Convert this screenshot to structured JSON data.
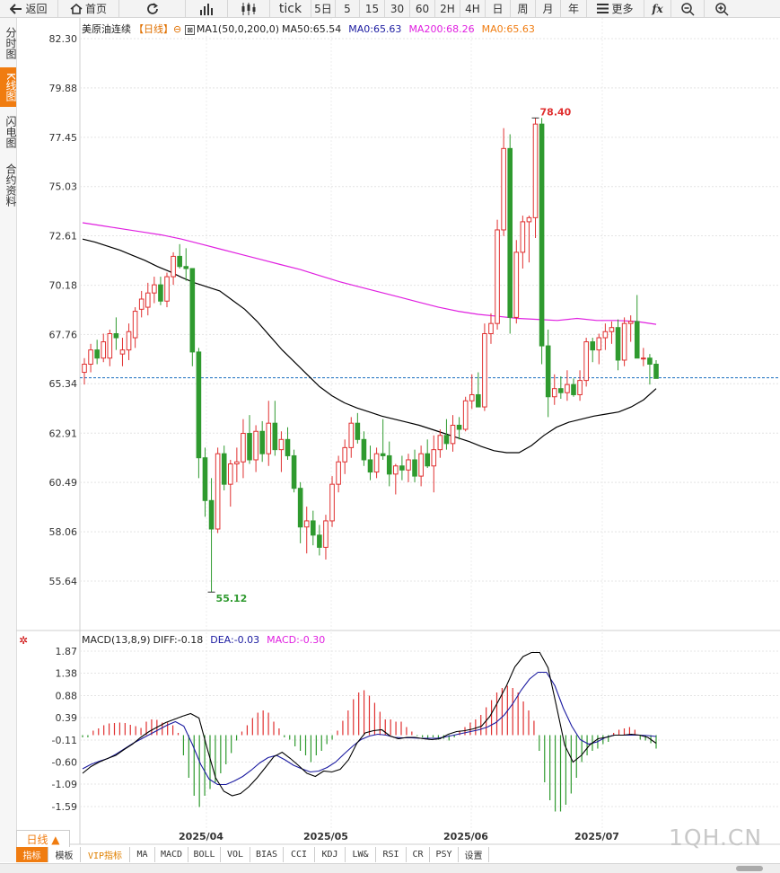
{
  "toolbar": {
    "back": "返回",
    "home": "首页",
    "tick": "tick",
    "periods": [
      "5日",
      "5",
      "15",
      "30",
      "60",
      "2H",
      "4H",
      "日",
      "周",
      "月",
      "年"
    ],
    "more": "更多",
    "fx": "fx"
  },
  "left_tabs": [
    "分时图",
    "K线图",
    "闪电图",
    "合约资料"
  ],
  "left_active": "K线图",
  "legend_main": {
    "symbol": "美原油连续",
    "period": "【日线】",
    "ma1": "MA1(50,0,200,0)",
    "ma50": "MA50:65.54",
    "ma0a": "MA0:65.63",
    "ma200": "MA200:68.26",
    "ma0b": "MA0:65.63"
  },
  "legend_macd": {
    "name": "MACD(13,8,9)",
    "diff": "DIFF:-0.18",
    "dea": "DEA:-0.03",
    "macd": "MACD:-0.30"
  },
  "colors": {
    "up": "#e03030",
    "down": "#2f9a2f",
    "ma50": "#000000",
    "ma200": "#e020e0",
    "dea": "#1a1aa0",
    "diff": "#000000",
    "refline": "#1a6fc0",
    "accent": "#f07c10"
  },
  "chart_data": [
    {
      "type": "candlestick",
      "title": "美原油连续 【日线】",
      "y_ticks": [
        "82.30",
        "79.88",
        "77.45",
        "75.03",
        "72.61",
        "70.18",
        "67.76",
        "65.34",
        "62.91",
        "60.49",
        "58.06",
        "55.64"
      ],
      "ylim": [
        54.5,
        83.0
      ],
      "x_ticks": [
        "2025/04",
        "2025/05",
        "2025/06",
        "2025/07"
      ],
      "annotations": {
        "high": "78.40",
        "low": "55.12"
      },
      "reference_line": 65.63,
      "ohlc": [
        [
          65.9,
          66.6,
          65.3,
          66.3
        ],
        [
          66.3,
          67.3,
          65.9,
          67.0
        ],
        [
          67.0,
          67.5,
          66.3,
          66.6
        ],
        [
          66.6,
          67.8,
          66.4,
          67.4
        ],
        [
          66.6,
          68.0,
          66.2,
          67.8
        ],
        [
          67.8,
          68.6,
          67.0,
          67.6
        ],
        [
          66.8,
          67.6,
          66.2,
          67.0
        ],
        [
          67.0,
          68.3,
          66.5,
          67.9
        ],
        [
          67.6,
          69.1,
          67.1,
          68.9
        ],
        [
          69.0,
          69.9,
          68.6,
          69.5
        ],
        [
          69.1,
          70.3,
          68.7,
          69.8
        ],
        [
          69.8,
          70.6,
          69.3,
          70.2
        ],
        [
          70.2,
          70.6,
          69.2,
          69.4
        ],
        [
          69.4,
          70.8,
          69.1,
          70.6
        ],
        [
          70.6,
          71.8,
          70.2,
          71.6
        ],
        [
          71.6,
          72.2,
          71.0,
          71.1
        ],
        [
          71.1,
          72.0,
          70.4,
          71.0
        ],
        [
          71.0,
          71.0,
          66.2,
          66.9
        ],
        [
          66.9,
          67.1,
          60.7,
          61.7
        ],
        [
          61.7,
          62.2,
          58.8,
          59.6
        ],
        [
          59.6,
          60.7,
          55.1,
          58.2
        ],
        [
          58.2,
          62.2,
          58.0,
          61.9
        ],
        [
          61.9,
          62.3,
          60.1,
          60.4
        ],
        [
          60.4,
          61.6,
          59.3,
          61.4
        ],
        [
          61.4,
          62.2,
          60.5,
          61.5
        ],
        [
          61.5,
          63.6,
          60.7,
          62.9
        ],
        [
          62.9,
          63.8,
          61.4,
          61.6
        ],
        [
          61.6,
          63.3,
          61.0,
          63.0
        ],
        [
          63.0,
          63.5,
          61.5,
          61.9
        ],
        [
          61.9,
          64.5,
          61.3,
          63.4
        ],
        [
          63.4,
          64.5,
          61.8,
          62.1
        ],
        [
          62.1,
          63.0,
          61.0,
          62.6
        ],
        [
          62.6,
          63.2,
          61.6,
          61.8
        ],
        [
          61.8,
          62.1,
          60.0,
          60.2
        ],
        [
          60.2,
          60.5,
          57.5,
          58.3
        ],
        [
          58.3,
          59.3,
          57.0,
          58.6
        ],
        [
          58.6,
          59.1,
          57.4,
          57.9
        ],
        [
          57.9,
          58.4,
          56.9,
          57.3
        ],
        [
          57.3,
          58.9,
          56.7,
          58.6
        ],
        [
          58.6,
          60.8,
          58.3,
          60.4
        ],
        [
          60.4,
          61.8,
          60.0,
          61.5
        ],
        [
          61.5,
          62.6,
          60.9,
          62.2
        ],
        [
          62.2,
          63.7,
          61.7,
          63.4
        ],
        [
          63.4,
          63.9,
          62.4,
          62.6
        ],
        [
          62.6,
          63.0,
          61.3,
          61.6
        ],
        [
          61.6,
          62.3,
          60.6,
          61.0
        ],
        [
          61.0,
          62.2,
          60.7,
          61.9
        ],
        [
          61.9,
          63.6,
          61.6,
          61.8
        ],
        [
          61.8,
          62.5,
          60.3,
          60.9
        ],
        [
          60.9,
          61.4,
          59.9,
          61.3
        ],
        [
          61.3,
          61.8,
          60.6,
          61.1
        ],
        [
          61.1,
          61.9,
          60.5,
          61.6
        ],
        [
          61.6,
          62.1,
          60.5,
          60.8
        ],
        [
          60.8,
          62.3,
          60.3,
          61.9
        ],
        [
          61.9,
          62.6,
          61.2,
          61.3
        ],
        [
          61.3,
          62.8,
          60.0,
          62.1
        ],
        [
          62.1,
          63.1,
          61.7,
          62.8
        ],
        [
          62.8,
          63.6,
          62.1,
          62.4
        ],
        [
          62.4,
          63.8,
          62.0,
          63.3
        ],
        [
          63.3,
          63.7,
          62.6,
          63.1
        ],
        [
          63.1,
          64.7,
          63.0,
          64.5
        ],
        [
          64.5,
          65.8,
          64.1,
          64.8
        ],
        [
          64.8,
          65.9,
          64.2,
          64.2
        ],
        [
          64.2,
          68.3,
          64.0,
          67.8
        ],
        [
          67.8,
          68.8,
          67.3,
          68.3
        ],
        [
          68.3,
          73.4,
          68.0,
          72.9
        ],
        [
          72.9,
          77.9,
          72.6,
          76.9
        ],
        [
          76.9,
          77.6,
          67.8,
          68.6
        ],
        [
          68.6,
          72.4,
          68.3,
          71.8
        ],
        [
          71.8,
          73.6,
          71.0,
          73.3
        ],
        [
          73.3,
          73.6,
          71.3,
          73.5
        ],
        [
          73.5,
          78.4,
          72.5,
          78.1
        ],
        [
          78.1,
          78.4,
          66.3,
          67.2
        ],
        [
          67.2,
          68.0,
          63.7,
          64.7
        ],
        [
          64.7,
          65.8,
          64.3,
          65.1
        ],
        [
          65.1,
          65.7,
          64.6,
          64.9
        ],
        [
          64.9,
          66.0,
          64.5,
          65.3
        ],
        [
          65.3,
          65.6,
          64.7,
          64.8
        ],
        [
          64.8,
          66.0,
          64.5,
          65.5
        ],
        [
          65.5,
          67.6,
          65.2,
          67.4
        ],
        [
          67.4,
          67.6,
          66.4,
          67.0
        ],
        [
          67.0,
          67.8,
          66.3,
          67.6
        ],
        [
          67.6,
          68.3,
          67.0,
          67.9
        ],
        [
          67.9,
          68.4,
          67.3,
          68.1
        ],
        [
          68.1,
          68.5,
          66.0,
          66.5
        ],
        [
          66.5,
          68.6,
          66.2,
          68.3
        ],
        [
          68.3,
          68.7,
          67.4,
          68.4
        ],
        [
          68.4,
          69.7,
          66.6,
          66.6
        ],
        [
          66.6,
          67.1,
          66.2,
          66.6
        ],
        [
          66.6,
          66.8,
          65.3,
          66.3
        ],
        [
          66.3,
          66.5,
          65.6,
          65.6
        ]
      ],
      "ma50": [
        72.45,
        72.3,
        72.1,
        71.9,
        71.65,
        71.4,
        71.1,
        70.85,
        70.55,
        70.3,
        70.1,
        69.9,
        69.45,
        69.0,
        68.4,
        67.7,
        67.0,
        66.4,
        65.8,
        65.2,
        64.75,
        64.4,
        64.15,
        63.95,
        63.75,
        63.6,
        63.45,
        63.3,
        63.1,
        62.9,
        62.7,
        62.5,
        62.25,
        62.05,
        61.95,
        61.95,
        62.3,
        62.8,
        63.2,
        63.45,
        63.6,
        63.75,
        63.85,
        63.95,
        64.2,
        64.55,
        65.1
      ],
      "ma200": [
        73.25,
        73.1,
        72.95,
        72.8,
        72.65,
        72.45,
        72.2,
        71.95,
        71.7,
        71.45,
        71.2,
        70.95,
        70.65,
        70.35,
        70.1,
        69.85,
        69.6,
        69.35,
        69.1,
        68.9,
        68.75,
        68.65,
        68.55,
        68.5,
        68.45,
        68.55,
        68.45,
        68.45,
        68.4,
        68.26
      ]
    },
    {
      "type": "macd",
      "title": "MACD(13,8,9)",
      "y_ticks": [
        "1.87",
        "1.38",
        "0.88",
        "0.39",
        "-0.11",
        "-0.60",
        "-1.09",
        "-1.59"
      ],
      "ylim": [
        -1.95,
        2.0
      ],
      "histogram": [
        -0.05,
        -0.05,
        0.1,
        0.15,
        0.22,
        0.26,
        0.27,
        0.28,
        0.27,
        0.23,
        0.2,
        0.16,
        0.3,
        0.35,
        0.34,
        0.28,
        0.28,
        0.22,
        0.05,
        -0.45,
        -0.95,
        -1.35,
        -1.6,
        -1.35,
        -1.2,
        -1.05,
        -0.85,
        -0.65,
        -0.4,
        -0.12,
        0.08,
        0.22,
        0.38,
        0.5,
        0.55,
        0.5,
        0.3,
        0.15,
        -0.05,
        -0.1,
        -0.25,
        -0.35,
        -0.45,
        -0.6,
        -0.45,
        -0.35,
        -0.2,
        -0.1,
        0.1,
        0.32,
        0.55,
        0.8,
        0.95,
        1.0,
        0.88,
        0.72,
        0.52,
        0.35,
        0.35,
        0.3,
        0.3,
        0.18,
        0.08,
        -0.02,
        -0.05,
        -0.08,
        -0.05,
        -0.1,
        -0.08,
        -0.12,
        -0.05,
        0.1,
        0.18,
        0.28,
        0.35,
        0.45,
        0.62,
        0.78,
        0.95,
        1.05,
        1.1,
        1.05,
        0.95,
        0.75,
        0.55,
        0.32,
        -0.35,
        -1.05,
        -1.45,
        -1.7,
        -1.7,
        -1.55,
        -1.3,
        -0.95,
        -0.6,
        -0.45,
        -0.35,
        -0.3,
        -0.2,
        -0.15,
        0.05,
        0.12,
        0.15,
        0.18,
        0.12,
        -0.1,
        -0.12,
        -0.18,
        -0.3
      ],
      "diff": [
        -0.85,
        -0.7,
        -0.6,
        -0.52,
        -0.45,
        -0.32,
        -0.2,
        -0.05,
        0.08,
        0.18,
        0.28,
        0.35,
        0.42,
        0.48,
        0.38,
        -0.3,
        -0.95,
        -1.25,
        -1.35,
        -1.3,
        -1.15,
        -0.95,
        -0.72,
        -0.48,
        -0.38,
        -0.52,
        -0.68,
        -0.85,
        -0.92,
        -0.8,
        -0.82,
        -0.76,
        -0.55,
        -0.18,
        0.05,
        0.1,
        0.12,
        -0.02,
        -0.08,
        -0.05,
        -0.05,
        -0.08,
        -0.1,
        -0.08,
        0.02,
        0.08,
        0.1,
        0.14,
        0.2,
        0.42,
        0.75,
        1.1,
        1.52,
        1.75,
        1.84,
        1.84,
        1.5,
        0.65,
        -0.22,
        -0.6,
        -0.45,
        -0.22,
        -0.08,
        -0.05,
        0.0,
        0.0,
        0.02,
        0.0,
        -0.05,
        -0.18
      ],
      "dea": [
        -0.75,
        -0.65,
        -0.58,
        -0.52,
        -0.42,
        -0.3,
        -0.18,
        -0.08,
        0.02,
        0.12,
        0.22,
        0.3,
        0.2,
        -0.2,
        -0.65,
        -0.98,
        -1.1,
        -1.1,
        -1.02,
        -0.92,
        -0.78,
        -0.62,
        -0.5,
        -0.45,
        -0.55,
        -0.67,
        -0.75,
        -0.82,
        -0.8,
        -0.72,
        -0.6,
        -0.42,
        -0.25,
        -0.1,
        -0.02,
        0.02,
        0.0,
        -0.05,
        -0.06,
        -0.06,
        -0.07,
        -0.07,
        -0.07,
        -0.04,
        0.0,
        0.04,
        0.08,
        0.12,
        0.18,
        0.28,
        0.45,
        0.7,
        1.0,
        1.25,
        1.4,
        1.4,
        1.1,
        0.6,
        0.2,
        -0.1,
        -0.2,
        -0.15,
        -0.05,
        0.0,
        0.0,
        0.0,
        0.0,
        -0.01,
        -0.03
      ]
    }
  ]
}
